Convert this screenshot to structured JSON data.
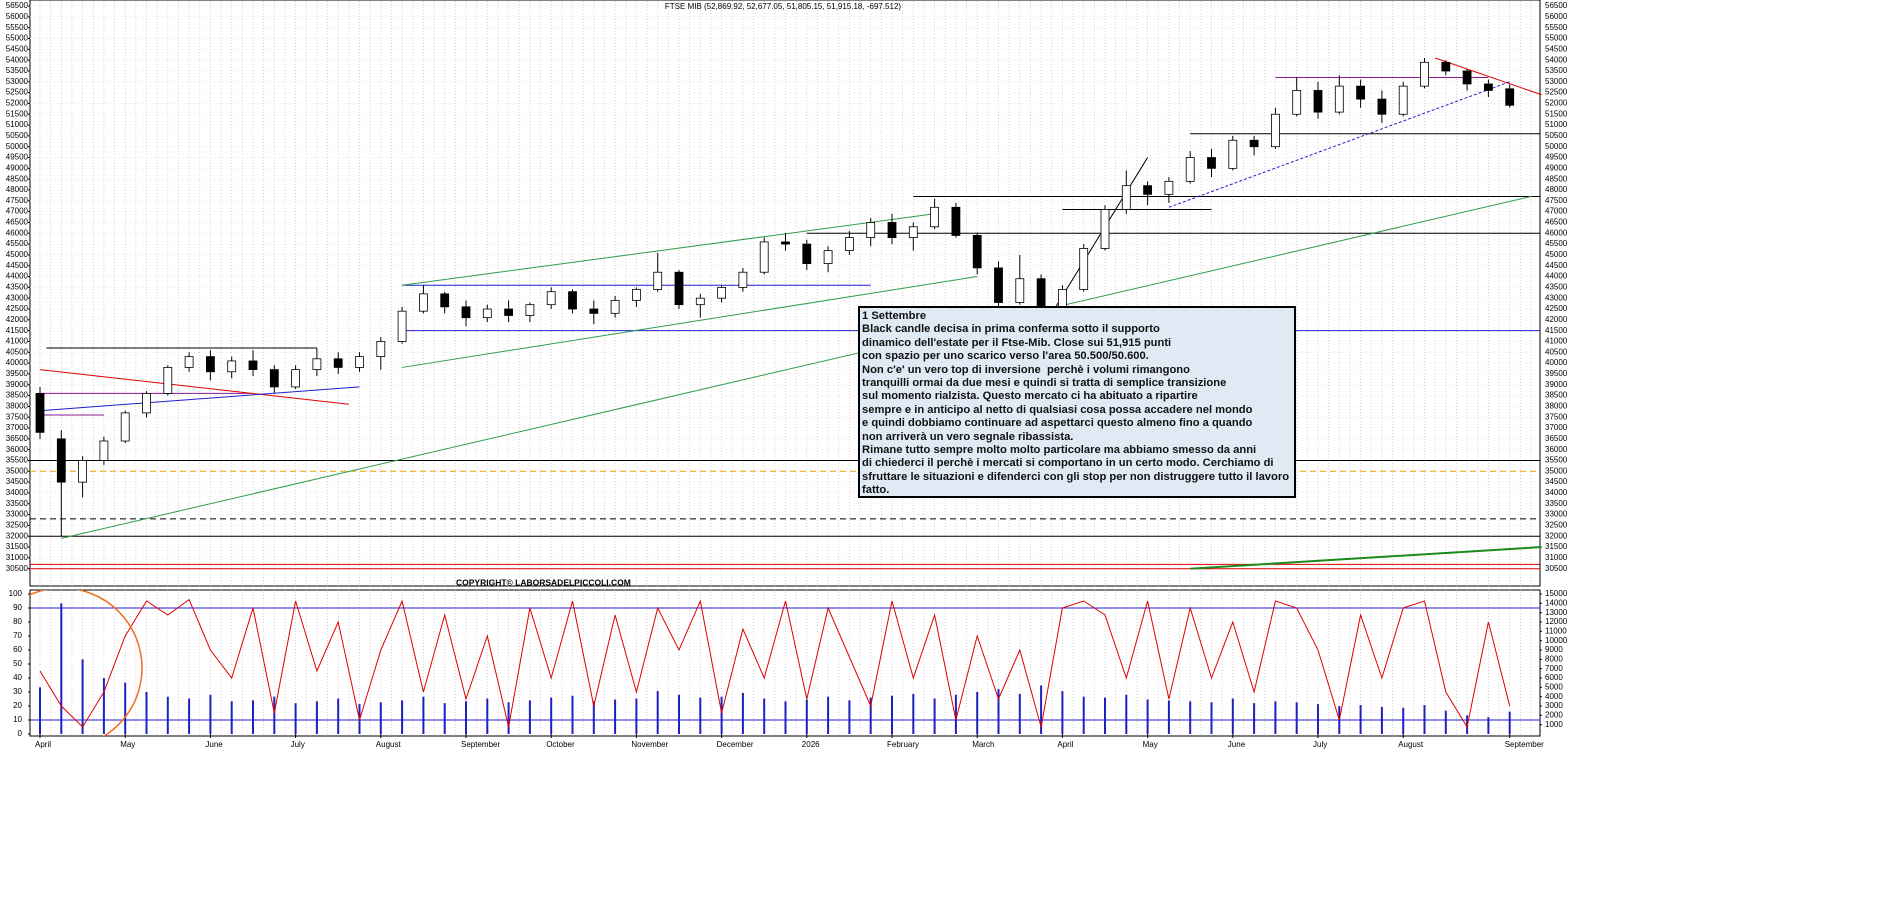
{
  "chart_data": {
    "type": "candlestick",
    "title": "FTSE MIB (52,869.92, 52,677.05, 51,805.15, 51,915.18, -697.512)",
    "categories": [
      "April",
      null,
      null,
      null,
      "May",
      null,
      null,
      null,
      "June",
      null,
      null,
      null,
      "July",
      null,
      null,
      null,
      "August",
      null,
      null,
      null,
      "September",
      null,
      null,
      null,
      "October",
      null,
      null,
      null,
      "November",
      null,
      null,
      null,
      "December",
      null,
      null,
      null,
      "2026",
      null,
      null,
      null,
      "February",
      null,
      null,
      null,
      "March",
      null,
      null,
      null,
      "April",
      null,
      null,
      null,
      "May",
      null,
      null,
      null,
      "June",
      null,
      null,
      null,
      "July",
      null,
      null,
      null,
      "August",
      null,
      null,
      null,
      null,
      "September"
    ],
    "open": [
      38600,
      36500,
      34500,
      35500,
      36400,
      37700,
      38600,
      39800,
      40300,
      39600,
      40100,
      39700,
      38900,
      39700,
      40200,
      39800,
      40300,
      41000,
      42400,
      43200,
      42600,
      42100,
      42500,
      42200,
      42700,
      43300,
      42500,
      42300,
      42900,
      43400,
      44200,
      42700,
      43000,
      43500,
      44200,
      45600,
      45500,
      44600,
      45200,
      45800,
      46500,
      45800,
      46300,
      47200,
      45900,
      44400,
      42800,
      43900,
      42000,
      43400,
      45300,
      47100,
      48200,
      47800,
      48400,
      49500,
      49000,
      50300,
      50000,
      51500,
      52600,
      51600,
      52800,
      52200,
      51500,
      52800,
      53900,
      53500,
      52900,
      52677
    ],
    "high": [
      38900,
      36900,
      35700,
      36600,
      37800,
      38700,
      39900,
      40500,
      40600,
      40300,
      40600,
      39900,
      39900,
      40700,
      40500,
      40500,
      41200,
      42600,
      43600,
      43300,
      42900,
      42700,
      42900,
      42800,
      43500,
      43400,
      42900,
      43100,
      43500,
      45100,
      44300,
      43200,
      43600,
      44400,
      45800,
      46000,
      45700,
      45400,
      46100,
      46700,
      46900,
      46500,
      47600,
      47400,
      46000,
      44700,
      45000,
      44100,
      43600,
      45500,
      47300,
      48900,
      48400,
      48600,
      49800,
      49900,
      50500,
      50500,
      51800,
      53200,
      53000,
      53300,
      53100,
      52600,
      53000,
      54100,
      54000,
      53600,
      53100,
      52870
    ],
    "low": [
      36500,
      32000,
      33800,
      35300,
      36300,
      37500,
      38500,
      39600,
      39200,
      39300,
      39400,
      38600,
      38800,
      39400,
      39500,
      39600,
      39700,
      40900,
      42300,
      42300,
      41700,
      41900,
      41900,
      41900,
      42500,
      42300,
      41800,
      42100,
      42600,
      43300,
      42500,
      42100,
      42800,
      43300,
      44100,
      45200,
      44300,
      44200,
      45000,
      45400,
      45500,
      45200,
      46200,
      45800,
      44100,
      42300,
      42700,
      41500,
      41700,
      43300,
      45200,
      46900,
      47300,
      47400,
      48300,
      48600,
      48900,
      49600,
      49900,
      51400,
      51300,
      51500,
      51800,
      51100,
      51400,
      52700,
      53300,
      52600,
      52300,
      51805
    ],
    "close": [
      36800,
      34500,
      35500,
      36400,
      37700,
      38600,
      39800,
      40300,
      39600,
      40100,
      39700,
      38900,
      39700,
      40200,
      39800,
      40300,
      41000,
      42400,
      43200,
      42600,
      42100,
      42500,
      42200,
      42700,
      43300,
      42500,
      42300,
      42900,
      43400,
      44200,
      42700,
      43000,
      43500,
      44200,
      45600,
      45500,
      44600,
      45200,
      45800,
      46500,
      45800,
      46300,
      47200,
      45900,
      44400,
      42800,
      43900,
      42000,
      43400,
      45300,
      47100,
      48200,
      47800,
      48400,
      49500,
      49000,
      50300,
      50000,
      51500,
      52600,
      51600,
      52800,
      52200,
      51500,
      52800,
      53900,
      53500,
      52900,
      52600,
      51915
    ],
    "up_color": "#ffffff",
    "down_color": "#000000",
    "ylim": [
      29700,
      56780
    ],
    "yticks": [
      30500,
      31000,
      31500,
      32000,
      32500,
      33000,
      33500,
      34000,
      34500,
      35000,
      35500,
      36000,
      36500,
      37000,
      37500,
      38000,
      38500,
      39000,
      39500,
      40000,
      40500,
      41000,
      41500,
      42000,
      42500,
      43000,
      43500,
      44000,
      44500,
      45000,
      45500,
      46000,
      46500,
      47000,
      47500,
      48000,
      48500,
      49000,
      49500,
      50000,
      50500,
      51000,
      51500,
      52000,
      52500,
      53000,
      53500,
      54000,
      54500,
      55000,
      55500,
      56000,
      56500
    ],
    "grid": true,
    "levels": [
      {
        "value": 47700,
        "color": "#000000",
        "from": 41
      },
      {
        "value": 46000,
        "color": "#000000",
        "from": 36
      },
      {
        "value": 50600,
        "color": "#000000",
        "from": 54
      },
      {
        "value": 53200,
        "color": "#8b1a8b",
        "from": 58,
        "to": 68
      },
      {
        "value": 47100,
        "color": "#000000",
        "from": 48,
        "to": 55
      },
      {
        "value": 41500,
        "color": "#1f1fd0",
        "from": 17
      },
      {
        "value": 43600,
        "color": "#1f1fd0",
        "from": 17,
        "to": 39
      },
      {
        "value": 40700,
        "color": "#000000",
        "from": 0.3,
        "to": 13
      },
      {
        "value": 38600,
        "color": "#8b1a8b",
        "from": 0,
        "to": 10
      },
      {
        "value": 37600,
        "color": "#8b1a8b",
        "from": 0,
        "to": 3
      },
      {
        "value": 35500,
        "color": "#000000"
      },
      {
        "value": 35000,
        "color": "#f0a000",
        "dash": true
      },
      {
        "value": 32800,
        "color": "#000000",
        "dash": true
      },
      {
        "value": 32000,
        "color": "#000000"
      },
      {
        "value": 30700,
        "color": "#e00000"
      },
      {
        "value": 30500,
        "color": "#e00000"
      }
    ],
    "trendlines": [
      {
        "from": [
          1,
          31900
        ],
        "to": [
          70,
          47700
        ],
        "color": "#2e9e4a"
      },
      {
        "from": [
          17,
          39800
        ],
        "to": [
          44,
          44000
        ],
        "color": "#2e9e4a"
      },
      {
        "from": [
          17,
          43600
        ],
        "to": [
          42,
          46900
        ],
        "color": "#2e9e4a"
      },
      {
        "from": [
          0,
          39700
        ],
        "to": [
          14.5,
          38100
        ],
        "color": "#e00000"
      },
      {
        "from": [
          0,
          37800
        ],
        "to": [
          15,
          38900
        ],
        "color": "#1f1fd0"
      },
      {
        "from": [
          47,
          41500
        ],
        "to": [
          52,
          49500
        ],
        "color": "#000000"
      },
      {
        "from": [
          65.5,
          54100
        ],
        "to": [
          70.5,
          52400
        ],
        "color": "#e00000"
      },
      {
        "from": [
          53,
          47200
        ],
        "to": [
          69,
          53000
        ],
        "color": "#1f1fd0",
        "dash": true
      },
      {
        "from": [
          54,
          30500
        ],
        "to": [
          70.5,
          31500
        ],
        "color": "#1a8a1a",
        "width": 2
      }
    ],
    "watermark": "COPYRIGHT© LABORSADELPICCOLI.COM",
    "annotation": {
      "title": "1 Settembre",
      "lines": [
        "Black candle decisa in prima conferma sotto il supporto",
        "dinamico dell'estate per il Ftse-Mib. Close sui 51,915 punti",
        "con spazio per uno scarico verso l'area 50.500/50.600.",
        "Non c'e' un vero top di inversione  perchè i volumi rimangono",
        "tranquilli ormai da due mesi e quindi si tratta di semplice transizione",
        "sul momento rialzista. Questo mercato ci ha abituato a ripartire",
        "sempre e in anticipo al netto di qualsiasi cosa possa accadere nel mondo",
        "e quindi dobbiamo continuare ad aspettarci questo almeno fino a quando",
        "non arriverà un vero segnale ribassista.",
        "Rimane tutto sempre molto molto particolare ma abbiamo smesso da anni",
        "di chiederci il perchè i mercati si comportano in un certo modo. Cerchiamo di",
        "sfruttare le situazioni e difenderci con gli stop per non distruggere tutto il lavoro",
        "fatto."
      ]
    },
    "lower": {
      "ylim": [
        0,
        100
      ],
      "yticks": [
        0,
        10,
        20,
        30,
        40,
        50,
        60,
        70,
        80,
        90,
        100
      ],
      "y2lim": [
        0,
        15000
      ],
      "y2ticks": [
        1000,
        2000,
        3000,
        4000,
        5000,
        6000,
        7000,
        8000,
        9000,
        10000,
        11000,
        12000,
        13000,
        14000,
        15000
      ],
      "levels": [
        {
          "value": 90,
          "color": "#1f1fd0"
        },
        {
          "value": 10,
          "color": "#1f1fd0"
        }
      ],
      "series": [
        {
          "type": "bar",
          "axis": "y2",
          "color": "#2020c0",
          "values": [
            5000,
            14000,
            8000,
            6000,
            5500,
            4500,
            4000,
            3800,
            4200,
            3500,
            3600,
            4000,
            3300,
            3500,
            3800,
            3200,
            3400,
            3600,
            4000,
            3300,
            3500,
            3800,
            3400,
            3600,
            3900,
            4100,
            3500,
            3700,
            3800,
            4600,
            4200,
            3900,
            4000,
            4400,
            3800,
            3500,
            3700,
            4000,
            3600,
            3900,
            4100,
            4300,
            3800,
            4200,
            4500,
            4800,
            4300,
            5200,
            4600,
            4000,
            3900,
            4200,
            3700,
            3600,
            3500,
            3400,
            3800,
            3300,
            3500,
            3400,
            3200,
            3000,
            3100,
            2900,
            2800,
            3100,
            2500,
            2000,
            1800,
            2400
          ]
        },
        {
          "type": "line",
          "color": "#e00000",
          "values": [
            45,
            20,
            5,
            30,
            70,
            95,
            85,
            96,
            60,
            40,
            90,
            15,
            95,
            45,
            80,
            10,
            60,
            95,
            30,
            85,
            25,
            70,
            5,
            90,
            40,
            95,
            20,
            85,
            30,
            90,
            60,
            95,
            15,
            75,
            40,
            95,
            25,
            90,
            55,
            20,
            95,
            40,
            85,
            10,
            70,
            25,
            60,
            5,
            90,
            95,
            85,
            40,
            95,
            25,
            90,
            40,
            80,
            30,
            95,
            90,
            60,
            10,
            85,
            40,
            90,
            95,
            30,
            5,
            80,
            20
          ]
        }
      ]
    }
  }
}
